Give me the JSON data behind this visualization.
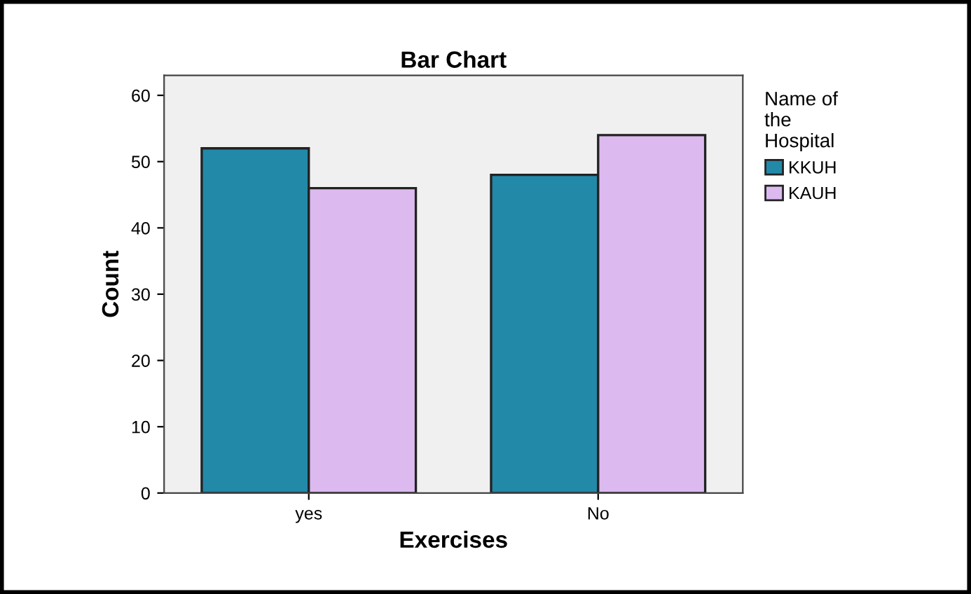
{
  "chart_data": {
    "type": "bar",
    "title": "Bar Chart",
    "xlabel": "Exercises",
    "ylabel": "Count",
    "legend_title": "Name of\nthe\nHospital",
    "categories": [
      "yes",
      "No"
    ],
    "series": [
      {
        "name": "KKUH",
        "color": "#2389a8",
        "values": [
          52,
          48
        ]
      },
      {
        "name": "KAUH",
        "color": "#dcbaf0",
        "values": [
          46,
          54
        ]
      }
    ],
    "ylim": [
      0,
      63
    ],
    "yticks": [
      0,
      10,
      20,
      30,
      40,
      50,
      60
    ],
    "grid": false,
    "legend": "right"
  }
}
